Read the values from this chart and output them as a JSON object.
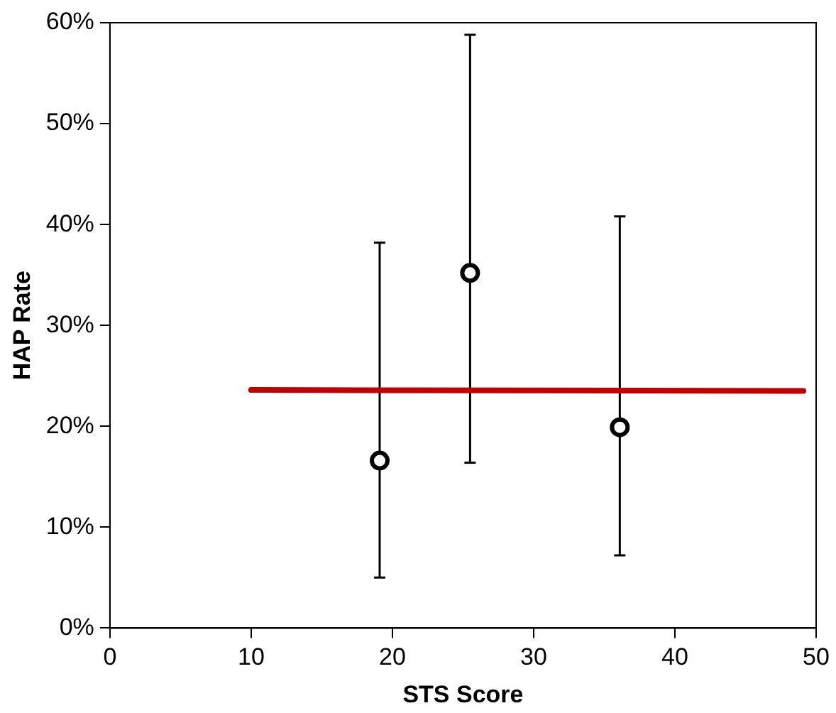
{
  "chart_data": {
    "type": "scatter",
    "xlabel": "STS Score",
    "ylabel": "HAP Rate",
    "xlim": [
      0,
      50
    ],
    "xticks": [
      0,
      10,
      20,
      30,
      40,
      50
    ],
    "ylim": [
      0,
      60
    ],
    "yticks": [
      {
        "value": 0,
        "label": "0%"
      },
      {
        "value": 10,
        "label": "10%"
      },
      {
        "value": 20,
        "label": "20%"
      },
      {
        "value": 30,
        "label": "30%"
      },
      {
        "value": 40,
        "label": "40%"
      },
      {
        "value": 50,
        "label": "50%"
      },
      {
        "value": 60,
        "label": "60%"
      }
    ],
    "grid": false,
    "legend": false,
    "marker": "circle",
    "series": [
      {
        "color": "#000000",
        "x": [
          19.1,
          25.5,
          36.1
        ],
        "values": [
          16.6,
          35.2,
          19.9
        ],
        "errors": [
          [
            5.0,
            38.2
          ],
          [
            16.4,
            58.8
          ],
          [
            7.2,
            40.8
          ]
        ]
      },
      {
        "type": "line",
        "color": "#c00000",
        "x": [
          10,
          49.1
        ],
        "values": [
          23.6,
          23.5
        ],
        "marker": "none",
        "line_style": "solid"
      }
    ]
  }
}
